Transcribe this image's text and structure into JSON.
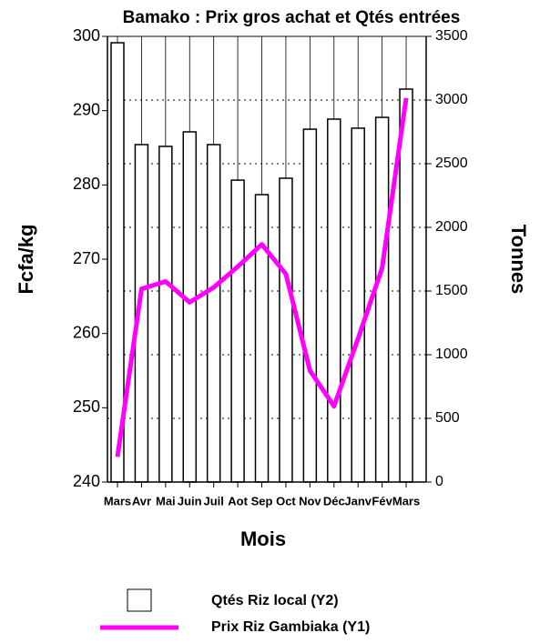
{
  "chart_data": {
    "type": "bar_line",
    "title": "Bamako : Prix  gros achat et Qtés entrées",
    "xlabel": "Mois",
    "ylabel": "Fcfa/kg",
    "y2label": "Tonnes",
    "categories": [
      "Mars",
      "Avr",
      "Mai",
      "Juin",
      "Juil",
      "Aot",
      "Sep",
      "Oct",
      "Nov",
      "Déc",
      "Janv",
      "Fév",
      "Mars"
    ],
    "series": [
      {
        "name": "Qtés Riz local (Y2)",
        "type": "bar",
        "axis": "y2",
        "color": "#ffffff",
        "values": [
          3450,
          2650,
          2636,
          2750,
          2650,
          2371,
          2257,
          2386,
          2771,
          2850,
          2779,
          2864,
          3086
        ]
      },
      {
        "name": "Prix Riz Gambiaka (Y1)",
        "type": "line",
        "axis": "y",
        "color": "#ff00ff",
        "values": [
          243.4,
          266,
          267,
          264.2,
          266.2,
          269,
          272,
          268,
          255,
          250.2,
          259.3,
          268.8,
          291.7
        ]
      }
    ],
    "ylim": [
      240,
      300
    ],
    "yticks": [
      240,
      250,
      260,
      270,
      280,
      290,
      300
    ],
    "y2lim": [
      0,
      3500
    ],
    "y2ticks": [
      0,
      500,
      1000,
      1500,
      2000,
      2500,
      3000,
      3500
    ],
    "grid": true,
    "legend": "bottom"
  }
}
